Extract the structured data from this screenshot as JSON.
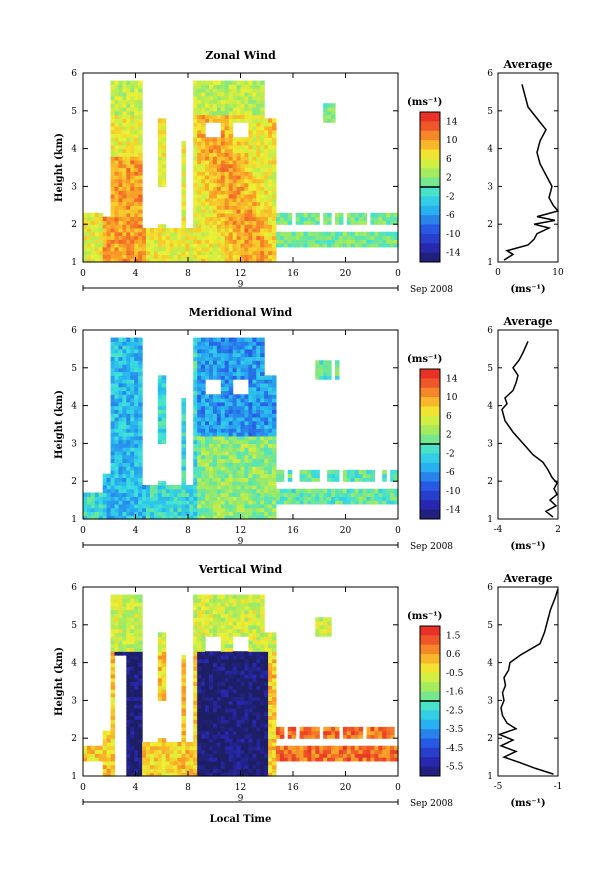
{
  "chart_data": [
    {
      "type": "heatmap",
      "title": "Zonal Wind",
      "ylabel": "Height (km)",
      "ylim": [
        1,
        6
      ],
      "yticks": [
        "1",
        "2",
        "3",
        "4",
        "5",
        "6"
      ],
      "xlim": [
        0,
        24
      ],
      "xticks": [
        "0",
        "4",
        "8",
        "12",
        "16",
        "20",
        "0"
      ],
      "date_day": "9",
      "date_label": "Sep 2008",
      "xlabel": "",
      "colorbar": {
        "unit": "(ms⁻¹)",
        "ticks": [
          "14",
          "10",
          "6",
          "2",
          "-2",
          "-6",
          "-10",
          "-14"
        ],
        "vmin": -16,
        "vmax": 16
      },
      "average": {
        "title": "Average",
        "xlabel": "(ms⁻¹)",
        "xlim": [
          0,
          10
        ],
        "xticks": [
          "0",
          "10"
        ],
        "profile": {
          "z": [
            1.05,
            1.2,
            1.3,
            1.45,
            1.6,
            1.75,
            1.9,
            2.0,
            2.1,
            2.2,
            2.35,
            2.5,
            2.7,
            3.0,
            3.3,
            3.6,
            3.9,
            4.2,
            4.5,
            4.8,
            5.1,
            5.4,
            5.7
          ],
          "v": [
            1,
            2.5,
            1.5,
            5,
            6,
            6.5,
            8.5,
            6,
            9.5,
            6.5,
            10,
            9.2,
            8.5,
            9,
            8,
            7,
            6.5,
            7,
            8,
            6.5,
            5,
            4.5,
            4
          ]
        }
      }
    },
    {
      "type": "heatmap",
      "title": "Meridional Wind",
      "ylabel": "Height (km)",
      "ylim": [
        1,
        6
      ],
      "yticks": [
        "1",
        "2",
        "3",
        "4",
        "5",
        "6"
      ],
      "xlim": [
        0,
        24
      ],
      "xticks": [
        "0",
        "4",
        "8",
        "12",
        "16",
        "20",
        "0"
      ],
      "date_day": "9",
      "date_label": "Sep 2008",
      "xlabel": "",
      "colorbar": {
        "unit": "(ms⁻¹)",
        "ticks": [
          "14",
          "10",
          "6",
          "2",
          "-2",
          "-6",
          "-10",
          "-14"
        ],
        "vmin": -16,
        "vmax": 16
      },
      "average": {
        "title": "Average",
        "xlabel": "(ms⁻¹)",
        "xlim": [
          -4,
          2
        ],
        "xticks": [
          "-4",
          "2"
        ],
        "profile": {
          "z": [
            1.05,
            1.2,
            1.35,
            1.5,
            1.65,
            1.8,
            1.95,
            2.1,
            2.3,
            2.5,
            2.7,
            3.0,
            3.3,
            3.6,
            3.9,
            4.05,
            4.2,
            4.4,
            4.6,
            4.8,
            5.0,
            5.2,
            5.4,
            5.7
          ],
          "v": [
            1.5,
            0.8,
            1.8,
            1.2,
            1.9,
            1.6,
            1.9,
            1.4,
            1.0,
            0.5,
            -0.5,
            -1.5,
            -2.5,
            -3.3,
            -3.6,
            -3.1,
            -3.3,
            -2.5,
            -2.2,
            -2.0,
            -2.5,
            -1.9,
            -1.5,
            -1.0
          ]
        }
      }
    },
    {
      "type": "heatmap",
      "title": "Vertical Wind",
      "ylabel": "Height (km)",
      "ylim": [
        1,
        6
      ],
      "yticks": [
        "1",
        "2",
        "3",
        "4",
        "5",
        "6"
      ],
      "xlim": [
        0,
        24
      ],
      "xticks": [
        "0",
        "4",
        "8",
        "12",
        "16",
        "20",
        "0"
      ],
      "date_day": "9",
      "date_label": "Sep 2008",
      "xlabel": "Local Time",
      "colorbar": {
        "unit": "(ms⁻¹)",
        "ticks": [
          "1.5",
          "0.6",
          "-0.5",
          "-1.6",
          "-2.5",
          "-3.5",
          "-4.5",
          "-5.5"
        ],
        "vmin": -6.0,
        "vmax": 2.0
      },
      "average": {
        "title": "Average",
        "xlabel": "(ms⁻¹)",
        "xlim": [
          -5,
          -1
        ],
        "xticks": [
          "-5",
          "-1"
        ],
        "profile": {
          "z": [
            1.05,
            1.2,
            1.35,
            1.5,
            1.65,
            1.8,
            1.95,
            2.1,
            2.25,
            2.4,
            2.6,
            2.8,
            3.0,
            3.2,
            3.4,
            3.6,
            3.8,
            4.0,
            4.2,
            4.5,
            4.8,
            5.1,
            5.4,
            5.7,
            5.95
          ],
          "v": [
            -1.3,
            -2.5,
            -3.5,
            -4.6,
            -3.8,
            -4.8,
            -4.0,
            -4.9,
            -3.8,
            -4.4,
            -4.7,
            -4.8,
            -4.6,
            -4.7,
            -4.5,
            -4.6,
            -4.3,
            -4.2,
            -3.5,
            -2.2,
            -1.9,
            -1.7,
            -1.5,
            -1.2,
            -1.0
          ]
        }
      }
    }
  ]
}
